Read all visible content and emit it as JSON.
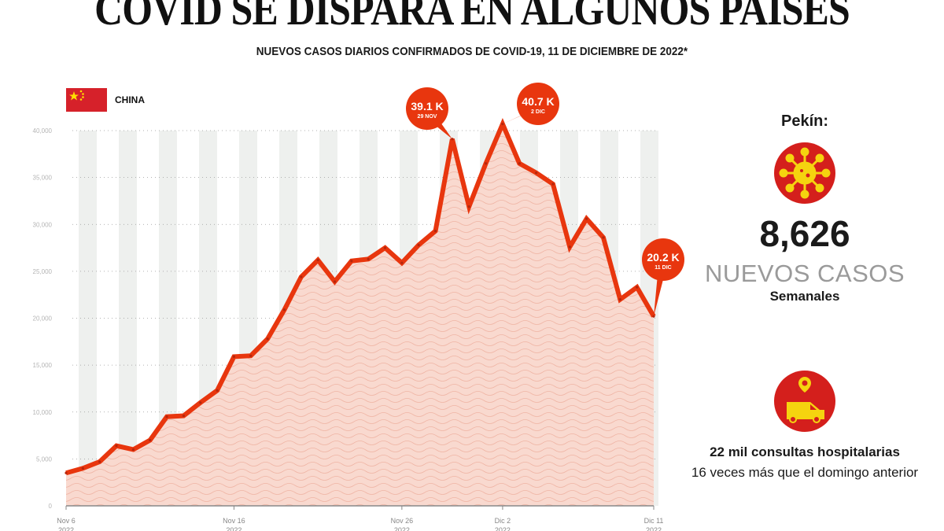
{
  "header": {
    "title": "COVID SE DISPARA EN ALGUNOS PAISES",
    "subtitle": "NUEVOS CASOS DIARIOS CONFIRMADOS DE COVID-19, 11 DE DICIEMBRE DE 2022*"
  },
  "legend": {
    "country": "CHINA",
    "flag_icon": "china-flag-icon"
  },
  "colors": {
    "line": "#e8360e",
    "area": "#f9d9cf",
    "callout": "#e8360e",
    "icon_bg": "#d41f1c",
    "icon_fg": "#f5d40f"
  },
  "chart_data": {
    "type": "area",
    "ylim": [
      0,
      40000
    ],
    "yticks": [
      "0",
      "5,000",
      "10,000",
      "15,000",
      "20,000",
      "25,000",
      "30,000",
      "35,000",
      "40,000"
    ],
    "grid": "dotted horizontal",
    "xtick_labels": [
      {
        "label": "Nov 6",
        "year": "2022",
        "index": 0
      },
      {
        "label": "Nov 16",
        "year": "2022",
        "index": 10
      },
      {
        "label": "Nov 26",
        "year": "2022",
        "index": 20
      },
      {
        "label": "Dic 2",
        "year": "2022",
        "index": 26
      },
      {
        "label": "Dic 11",
        "year": "2022",
        "index": 35
      }
    ],
    "x": [
      "Nov 6",
      "Nov 7",
      "Nov 8",
      "Nov 9",
      "Nov 10",
      "Nov 11",
      "Nov 12",
      "Nov 13",
      "Nov 14",
      "Nov 15",
      "Nov 16",
      "Nov 17",
      "Nov 18",
      "Nov 19",
      "Nov 20",
      "Nov 21",
      "Nov 22",
      "Nov 23",
      "Nov 24",
      "Nov 25",
      "Nov 26",
      "Nov 27",
      "Nov 28",
      "Nov 29",
      "Nov 30",
      "Dic 1",
      "Dic 2",
      "Dic 3",
      "Dic 4",
      "Dic 5",
      "Dic 6",
      "Dic 7",
      "Dic 8",
      "Dic 9",
      "Dic 10",
      "Dic 11"
    ],
    "values": [
      3500,
      4000,
      4700,
      6400,
      6000,
      7000,
      9500,
      9600,
      11000,
      12300,
      15900,
      16000,
      17800,
      20900,
      24400,
      26200,
      23900,
      26100,
      26300,
      27500,
      25900,
      27800,
      29300,
      39100,
      31900,
      36500,
      40700,
      36500,
      35500,
      34300,
      27600,
      30600,
      28600,
      22000,
      23300,
      20200
    ],
    "annotations": [
      {
        "value": "39.1 K",
        "date": "29 NOV",
        "index": 23
      },
      {
        "value": "40.7 K",
        "date": "2 DIC",
        "index": 26
      },
      {
        "value": "20.2 K",
        "date": "11 DIC",
        "index": 35
      }
    ]
  },
  "side": {
    "city": "Pekín:",
    "virus_icon": "virus-icon",
    "weekly_cases": "8,626",
    "cases_label": "NUEVOS CASOS",
    "cases_sub": "Semanales",
    "ambulance_icon": "ambulance-icon",
    "consults": "22 mil consultas hospitalarias",
    "consults_note": "16 veces más que el domingo anterior"
  }
}
